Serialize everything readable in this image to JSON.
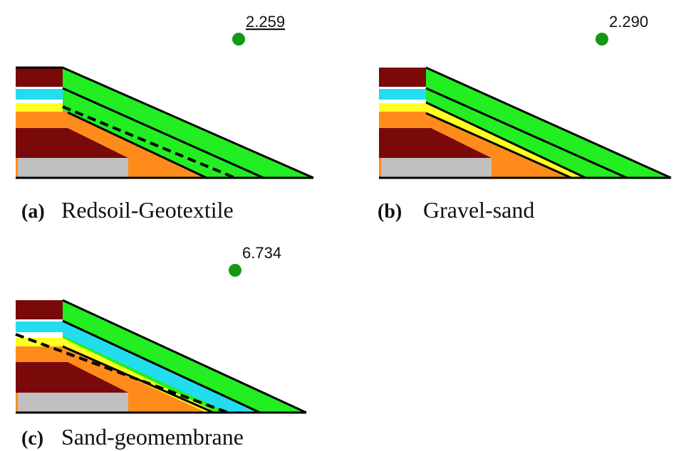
{
  "panels": [
    {
      "label": "(a)",
      "name": "Redsoil-Geotextile",
      "factor": "2.259"
    },
    {
      "label": "(b)",
      "name": "Gravel-sand",
      "factor": "2.290"
    },
    {
      "label": "(c)",
      "name": "Sand-geomembrane",
      "factor": "6.734"
    }
  ]
}
